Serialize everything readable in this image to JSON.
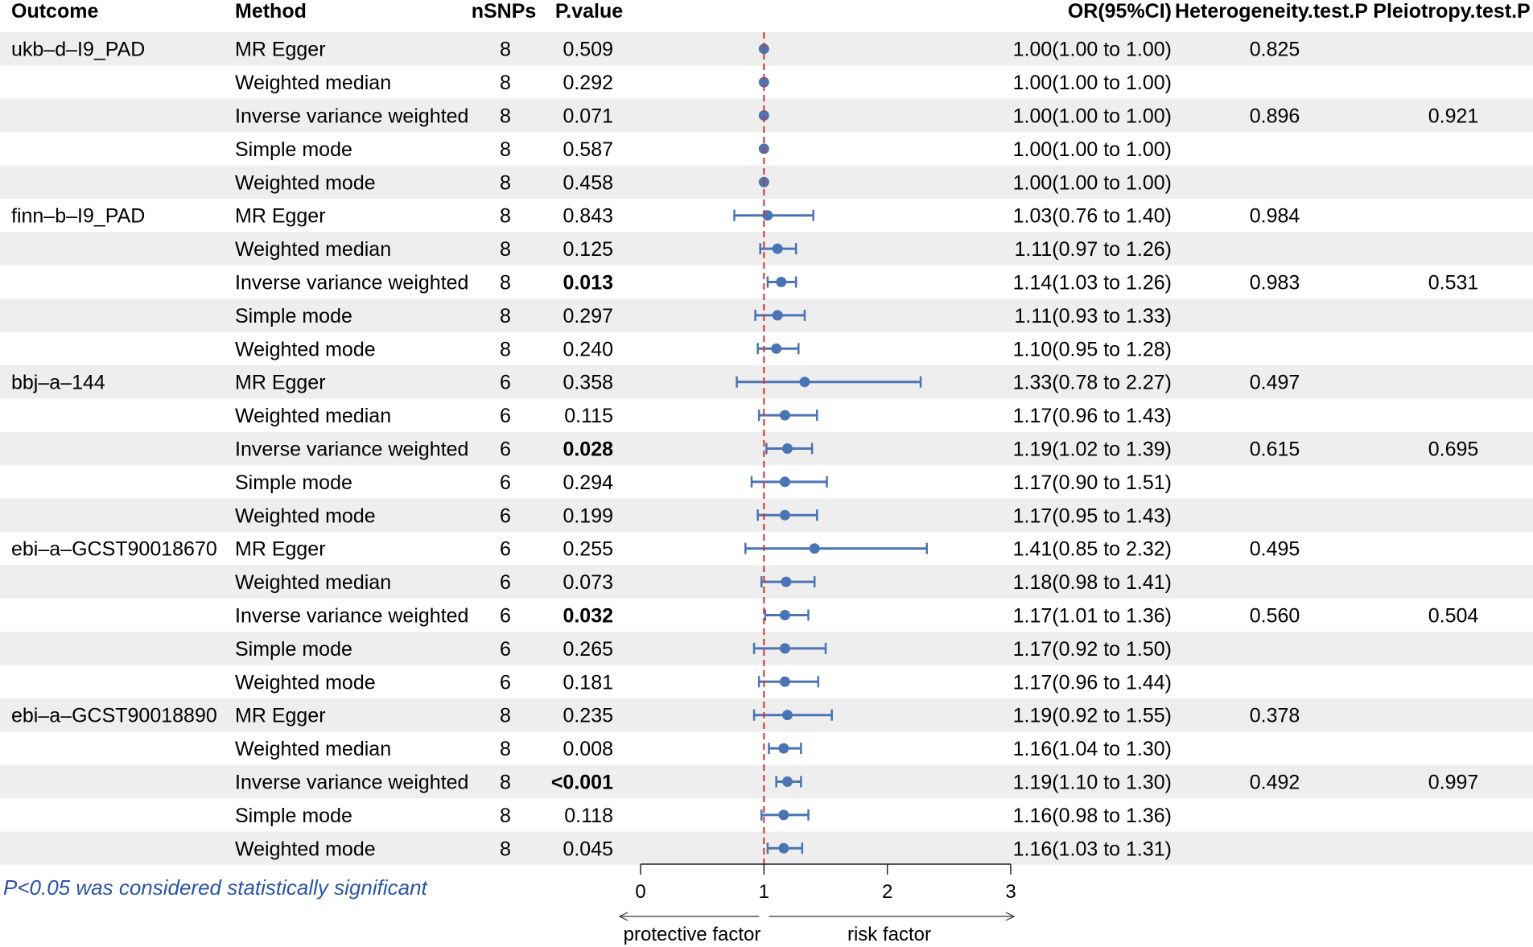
{
  "headers": {
    "outcome": "Outcome",
    "method": "Method",
    "nsnps": "nSNPs",
    "pvalue": "P.value",
    "or": "OR(95%CI)",
    "heterogeneity": "Heterogeneity.test.P",
    "pleiotropy": "Pleiotropy.test.P"
  },
  "note": "P<0.05 was considered statistically significant",
  "axis": {
    "ticks": [
      "0",
      "1",
      "2",
      "3"
    ],
    "left_label": "protective factor",
    "right_label": "risk factor"
  },
  "colors": {
    "point": "#4a74b4",
    "ref_line": "#d9302c",
    "note": "#2b55a3",
    "stripe": "#eeeeee"
  },
  "chart_data": {
    "type": "forest",
    "x_range": [
      0,
      3
    ],
    "reference_x": 1,
    "rows": [
      {
        "outcome": "ukb–d–I9_PAD",
        "method": "MR Egger",
        "nsnps": "8",
        "pvalue": "0.509",
        "sig": false,
        "or": 1.0,
        "lo": 1.0,
        "hi": 1.0,
        "or_text": "1.00(1.00 to 1.00)",
        "het": "0.825",
        "pleio": ""
      },
      {
        "outcome": "",
        "method": "Weighted median",
        "nsnps": "8",
        "pvalue": "0.292",
        "sig": false,
        "or": 1.0,
        "lo": 1.0,
        "hi": 1.0,
        "or_text": "1.00(1.00 to 1.00)",
        "het": "",
        "pleio": ""
      },
      {
        "outcome": "",
        "method": "Inverse variance weighted",
        "nsnps": "8",
        "pvalue": "0.071",
        "sig": false,
        "or": 1.0,
        "lo": 1.0,
        "hi": 1.0,
        "or_text": "1.00(1.00 to 1.00)",
        "het": "0.896",
        "pleio": "0.921"
      },
      {
        "outcome": "",
        "method": "Simple mode",
        "nsnps": "8",
        "pvalue": "0.587",
        "sig": false,
        "or": 1.0,
        "lo": 1.0,
        "hi": 1.0,
        "or_text": "1.00(1.00 to 1.00)",
        "het": "",
        "pleio": ""
      },
      {
        "outcome": "",
        "method": "Weighted mode",
        "nsnps": "8",
        "pvalue": "0.458",
        "sig": false,
        "or": 1.0,
        "lo": 1.0,
        "hi": 1.0,
        "or_text": "1.00(1.00 to 1.00)",
        "het": "",
        "pleio": ""
      },
      {
        "outcome": "finn–b–I9_PAD",
        "method": "MR Egger",
        "nsnps": "8",
        "pvalue": "0.843",
        "sig": false,
        "or": 1.03,
        "lo": 0.76,
        "hi": 1.4,
        "or_text": "1.03(0.76 to 1.40)",
        "het": "0.984",
        "pleio": ""
      },
      {
        "outcome": "",
        "method": "Weighted median",
        "nsnps": "8",
        "pvalue": "0.125",
        "sig": false,
        "or": 1.11,
        "lo": 0.97,
        "hi": 1.26,
        "or_text": "1.11(0.97 to 1.26)",
        "het": "",
        "pleio": ""
      },
      {
        "outcome": "",
        "method": "Inverse variance weighted",
        "nsnps": "8",
        "pvalue": "0.013",
        "sig": true,
        "or": 1.14,
        "lo": 1.03,
        "hi": 1.26,
        "or_text": "1.14(1.03 to 1.26)",
        "het": "0.983",
        "pleio": "0.531"
      },
      {
        "outcome": "",
        "method": "Simple mode",
        "nsnps": "8",
        "pvalue": "0.297",
        "sig": false,
        "or": 1.11,
        "lo": 0.93,
        "hi": 1.33,
        "or_text": "1.11(0.93 to 1.33)",
        "het": "",
        "pleio": ""
      },
      {
        "outcome": "",
        "method": "Weighted mode",
        "nsnps": "8",
        "pvalue": "0.240",
        "sig": false,
        "or": 1.1,
        "lo": 0.95,
        "hi": 1.28,
        "or_text": "1.10(0.95 to 1.28)",
        "het": "",
        "pleio": ""
      },
      {
        "outcome": "bbj–a–144",
        "method": "MR Egger",
        "nsnps": "6",
        "pvalue": "0.358",
        "sig": false,
        "or": 1.33,
        "lo": 0.78,
        "hi": 2.27,
        "or_text": "1.33(0.78 to 2.27)",
        "het": "0.497",
        "pleio": ""
      },
      {
        "outcome": "",
        "method": "Weighted median",
        "nsnps": "6",
        "pvalue": "0.115",
        "sig": false,
        "or": 1.17,
        "lo": 0.96,
        "hi": 1.43,
        "or_text": "1.17(0.96 to 1.43)",
        "het": "",
        "pleio": ""
      },
      {
        "outcome": "",
        "method": "Inverse variance weighted",
        "nsnps": "6",
        "pvalue": "0.028",
        "sig": true,
        "or": 1.19,
        "lo": 1.02,
        "hi": 1.39,
        "or_text": "1.19(1.02 to 1.39)",
        "het": "0.615",
        "pleio": "0.695"
      },
      {
        "outcome": "",
        "method": "Simple mode",
        "nsnps": "6",
        "pvalue": "0.294",
        "sig": false,
        "or": 1.17,
        "lo": 0.9,
        "hi": 1.51,
        "or_text": "1.17(0.90 to 1.51)",
        "het": "",
        "pleio": ""
      },
      {
        "outcome": "",
        "method": "Weighted mode",
        "nsnps": "6",
        "pvalue": "0.199",
        "sig": false,
        "or": 1.17,
        "lo": 0.95,
        "hi": 1.43,
        "or_text": "1.17(0.95 to 1.43)",
        "het": "",
        "pleio": ""
      },
      {
        "outcome": "ebi–a–GCST90018670",
        "method": "MR Egger",
        "nsnps": "6",
        "pvalue": "0.255",
        "sig": false,
        "or": 1.41,
        "lo": 0.85,
        "hi": 2.32,
        "or_text": "1.41(0.85 to 2.32)",
        "het": "0.495",
        "pleio": ""
      },
      {
        "outcome": "",
        "method": "Weighted median",
        "nsnps": "6",
        "pvalue": "0.073",
        "sig": false,
        "or": 1.18,
        "lo": 0.98,
        "hi": 1.41,
        "or_text": "1.18(0.98 to 1.41)",
        "het": "",
        "pleio": ""
      },
      {
        "outcome": "",
        "method": "Inverse variance weighted",
        "nsnps": "6",
        "pvalue": "0.032",
        "sig": true,
        "or": 1.17,
        "lo": 1.01,
        "hi": 1.36,
        "or_text": "1.17(1.01 to 1.36)",
        "het": "0.560",
        "pleio": "0.504"
      },
      {
        "outcome": "",
        "method": "Simple mode",
        "nsnps": "6",
        "pvalue": "0.265",
        "sig": false,
        "or": 1.17,
        "lo": 0.92,
        "hi": 1.5,
        "or_text": "1.17(0.92 to 1.50)",
        "het": "",
        "pleio": ""
      },
      {
        "outcome": "",
        "method": "Weighted mode",
        "nsnps": "6",
        "pvalue": "0.181",
        "sig": false,
        "or": 1.17,
        "lo": 0.96,
        "hi": 1.44,
        "or_text": "1.17(0.96 to 1.44)",
        "het": "",
        "pleio": ""
      },
      {
        "outcome": "ebi–a–GCST90018890",
        "method": "MR Egger",
        "nsnps": "8",
        "pvalue": "0.235",
        "sig": false,
        "or": 1.19,
        "lo": 0.92,
        "hi": 1.55,
        "or_text": "1.19(0.92 to 1.55)",
        "het": "0.378",
        "pleio": ""
      },
      {
        "outcome": "",
        "method": "Weighted median",
        "nsnps": "8",
        "pvalue": "0.008",
        "sig": false,
        "or": 1.16,
        "lo": 1.04,
        "hi": 1.3,
        "or_text": "1.16(1.04 to 1.30)",
        "het": "",
        "pleio": ""
      },
      {
        "outcome": "",
        "method": "Inverse variance weighted",
        "nsnps": "8",
        "pvalue": "<0.001",
        "sig": true,
        "or": 1.19,
        "lo": 1.1,
        "hi": 1.3,
        "or_text": "1.19(1.10 to 1.30)",
        "het": "0.492",
        "pleio": "0.997"
      },
      {
        "outcome": "",
        "method": "Simple mode",
        "nsnps": "8",
        "pvalue": "0.118",
        "sig": false,
        "or": 1.16,
        "lo": 0.98,
        "hi": 1.36,
        "or_text": "1.16(0.98 to 1.36)",
        "het": "",
        "pleio": ""
      },
      {
        "outcome": "",
        "method": "Weighted mode",
        "nsnps": "8",
        "pvalue": "0.045",
        "sig": false,
        "or": 1.16,
        "lo": 1.03,
        "hi": 1.31,
        "or_text": "1.16(1.03 to 1.31)",
        "het": "",
        "pleio": ""
      }
    ]
  }
}
